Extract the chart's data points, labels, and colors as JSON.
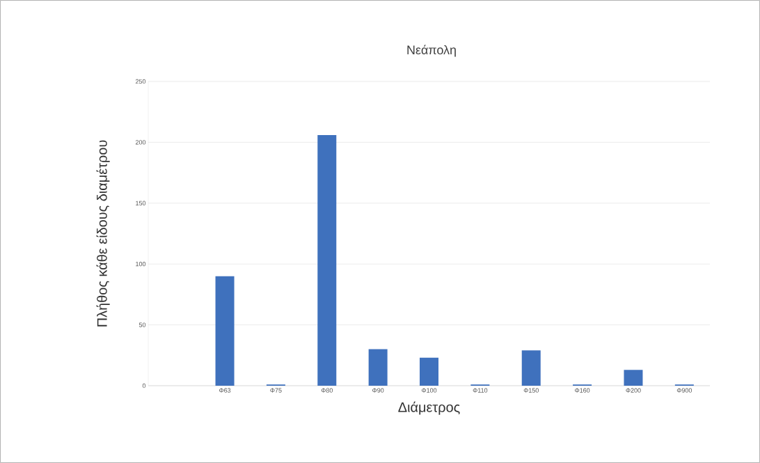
{
  "chart_data": {
    "type": "bar",
    "title": "Νεάπολη",
    "xlabel": "Διάμετρος",
    "ylabel": "Πλήθος κάθε είδους διαμέτρου",
    "categories": [
      null,
      "Φ63",
      "Φ75",
      "Φ80",
      "Φ90",
      "Φ100",
      "Φ110",
      "Φ150",
      "Φ160",
      "Φ200",
      "Φ900"
    ],
    "values": [
      0,
      90,
      1,
      206,
      30,
      23,
      1,
      29,
      1,
      13,
      1
    ],
    "color": "#3f71bd",
    "ylim": [
      0,
      250
    ],
    "yticks": [
      0,
      50,
      100,
      150,
      200,
      250
    ],
    "grid": "y"
  }
}
